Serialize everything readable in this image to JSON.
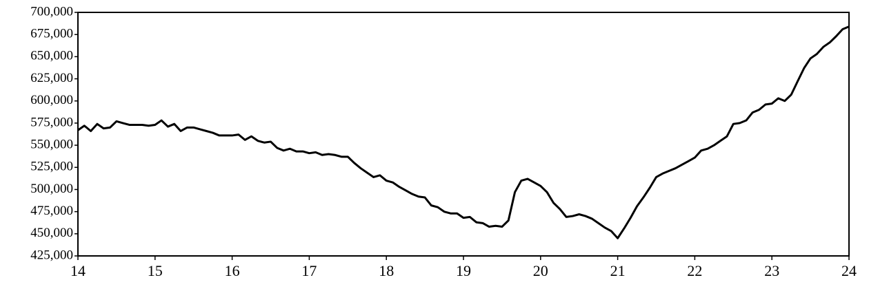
{
  "chart_data": {
    "type": "line",
    "x": [
      14,
      14.083,
      14.167,
      14.25,
      14.333,
      14.417,
      14.5,
      14.583,
      14.667,
      14.75,
      14.833,
      14.917,
      15,
      15.083,
      15.167,
      15.25,
      15.333,
      15.417,
      15.5,
      15.583,
      15.667,
      15.75,
      15.833,
      15.917,
      16,
      16.083,
      16.167,
      16.25,
      16.333,
      16.417,
      16.5,
      16.583,
      16.667,
      16.75,
      16.833,
      16.917,
      17,
      17.083,
      17.167,
      17.25,
      17.333,
      17.417,
      17.5,
      17.583,
      17.667,
      17.75,
      17.833,
      17.917,
      18,
      18.083,
      18.167,
      18.25,
      18.333,
      18.417,
      18.5,
      18.583,
      18.667,
      18.75,
      18.833,
      18.917,
      19,
      19.083,
      19.167,
      19.25,
      19.333,
      19.417,
      19.5,
      19.583,
      19.667,
      19.75,
      19.833,
      19.917,
      20,
      20.083,
      20.167,
      20.25,
      20.333,
      20.417,
      20.5,
      20.583,
      20.667,
      20.75,
      20.833,
      20.917,
      21,
      21.083,
      21.167,
      21.25,
      21.333,
      21.417,
      21.5,
      21.583,
      21.667,
      21.75,
      21.833,
      21.917,
      22,
      22.083,
      22.167,
      22.25,
      22.333,
      22.417,
      22.5,
      22.583,
      22.667,
      22.75,
      22.833,
      22.917,
      23,
      23.083,
      23.167,
      23.25,
      23.333,
      23.417,
      23.5,
      23.583,
      23.667,
      23.75,
      23.833,
      23.917,
      24
    ],
    "series": [
      {
        "color": "#000000",
        "values": [
          567000,
          572000,
          566000,
          574000,
          569000,
          570000,
          577000,
          575000,
          573000,
          573000,
          573000,
          572000,
          573000,
          578000,
          571000,
          574000,
          566000,
          570000,
          570000,
          568000,
          566000,
          564000,
          561000,
          561000,
          561000,
          562000,
          556000,
          560000,
          555000,
          553000,
          554000,
          547000,
          544000,
          546000,
          543000,
          543000,
          541000,
          542000,
          539000,
          540000,
          539000,
          537000,
          537000,
          530000,
          524000,
          519000,
          514000,
          516000,
          510000,
          508000,
          503000,
          499000,
          495000,
          492000,
          491000,
          482000,
          480000,
          475000,
          473000,
          473000,
          468000,
          469000,
          463000,
          462000,
          458000,
          459000,
          458000,
          465000,
          497000,
          510000,
          512000,
          508000,
          504000,
          497000,
          485000,
          478000,
          469000,
          470000,
          472000,
          470000,
          467000,
          462000,
          457000,
          453000,
          445000,
          456000,
          468000,
          481000,
          491000,
          502000,
          514000,
          518000,
          521000,
          524000,
          528000,
          532000,
          536000,
          544000,
          546000,
          550000,
          555000,
          560000,
          574000,
          575000,
          578000,
          587000,
          590000,
          596000,
          597000,
          603000,
          600000,
          607000,
          622000,
          637000,
          648000,
          653000,
          661000,
          666000,
          673000,
          681000,
          684000
        ]
      }
    ],
    "xlim": [
      14,
      24
    ],
    "xticks": [
      14,
      15,
      16,
      17,
      18,
      19,
      20,
      21,
      22,
      23,
      24
    ],
    "ylim": [
      425000,
      700000
    ],
    "yticks": [
      {
        "value": 425000,
        "label": "425,000"
      },
      {
        "value": 450000,
        "label": "450,000"
      },
      {
        "value": 475000,
        "label": "475,000"
      },
      {
        "value": 500000,
        "label": "500,000"
      },
      {
        "value": 525000,
        "label": "525,000"
      },
      {
        "value": 550000,
        "label": "550,000"
      },
      {
        "value": 575000,
        "label": "575,000"
      },
      {
        "value": 600000,
        "label": "600,000"
      },
      {
        "value": 625000,
        "label": "625,000"
      },
      {
        "value": 650000,
        "label": "650,000"
      },
      {
        "value": 675000,
        "label": "675,000"
      },
      {
        "value": 700000,
        "label": "700,000"
      }
    ]
  }
}
